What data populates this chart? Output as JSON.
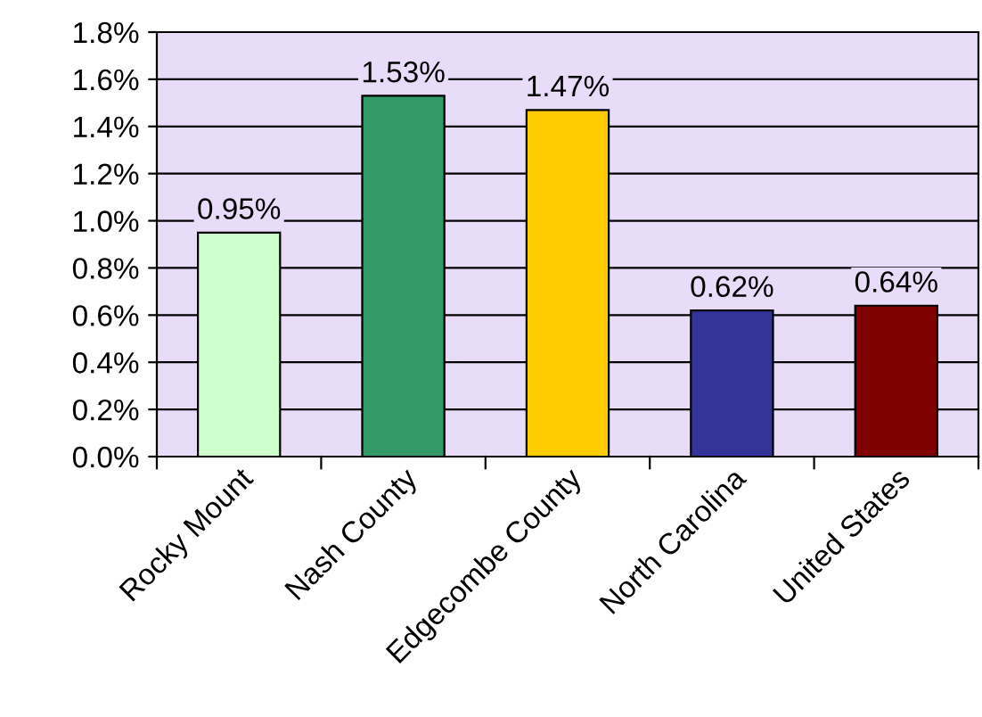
{
  "chart_data": {
    "type": "bar",
    "categories": [
      "Rocky Mount",
      "Nash County",
      "Edgecombe County",
      "North Carolina",
      "United States"
    ],
    "values": [
      0.95,
      1.53,
      1.47,
      0.62,
      0.64
    ],
    "colors": [
      "#ccffcc",
      "#339966",
      "#ffcc00",
      "#333399",
      "#800000"
    ],
    "value_labels": [
      "0.95%",
      "1.53%",
      "1.47%",
      "0.62%",
      "0.64%"
    ],
    "ylim": [
      0,
      1.8
    ],
    "yticks": [
      {
        "value": 0,
        "label": "0.0%"
      },
      {
        "value": 0.2,
        "label": "0.2%"
      },
      {
        "value": 0.4,
        "label": "0.4%"
      },
      {
        "value": 0.6,
        "label": "0.6%"
      },
      {
        "value": 0.8,
        "label": "0.8%"
      },
      {
        "value": 1.0,
        "label": "1.0%"
      },
      {
        "value": 1.2,
        "label": "1.2%"
      },
      {
        "value": 1.4,
        "label": "1.4%"
      },
      {
        "value": 1.6,
        "label": "1.6%"
      },
      {
        "value": 1.8,
        "label": "1.8%"
      }
    ],
    "grid": "y",
    "legend": false
  }
}
